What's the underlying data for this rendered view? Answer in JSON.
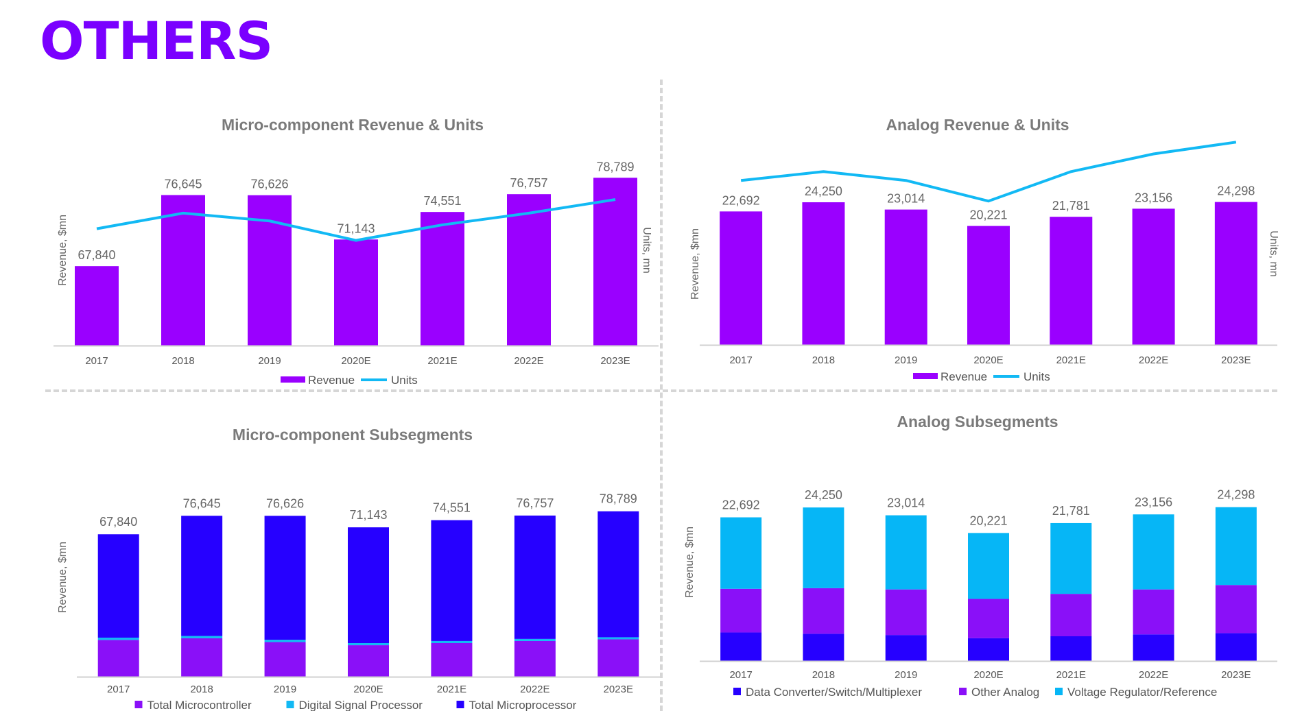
{
  "page": {
    "title": "OTHERS",
    "accent": "#7a00ff"
  },
  "chart_data": [
    {
      "id": "micro-rev-units",
      "type": "bar",
      "title": "Micro-component Revenue & Units",
      "xlabel": "",
      "ylabel": "Revenue, $mn",
      "y2label": "Units, mn",
      "categories": [
        "2017",
        "2018",
        "2019",
        "2020E",
        "2021E",
        "2022E",
        "2023E"
      ],
      "series": [
        {
          "name": "Revenue",
          "kind": "bar",
          "color": "#9a00ff",
          "values": [
            67840,
            76645,
            76626,
            71143,
            74551,
            76757,
            78789
          ]
        },
        {
          "name": "Units",
          "kind": "line",
          "axis": "secondary",
          "color": "#12b9f4",
          "values": [
            0.6,
            0.68,
            0.64,
            0.54,
            0.62,
            0.68,
            0.75
          ]
        }
      ],
      "data_labels": [
        "67,840",
        "76,645",
        "76,626",
        "71,143",
        "74,551",
        "76,757",
        "78,789"
      ],
      "ylim": [
        58000,
        80000
      ],
      "y2lim": [
        0,
        1
      ],
      "legend": "bottom",
      "grid": false
    },
    {
      "id": "analog-rev-units",
      "type": "bar",
      "title": "Analog Revenue & Units",
      "xlabel": "",
      "ylabel": "Revenue, $mn",
      "y2label": "Units, mn",
      "categories": [
        "2017",
        "2018",
        "2019",
        "2020E",
        "2021E",
        "2022E",
        "2023E"
      ],
      "series": [
        {
          "name": "Revenue",
          "kind": "bar",
          "color": "#9a00ff",
          "values": [
            22692,
            24250,
            23014,
            20221,
            21781,
            23156,
            24298
          ]
        },
        {
          "name": "Units",
          "kind": "line",
          "axis": "secondary",
          "color": "#12b9f4",
          "values": [
            0.76,
            0.79,
            0.76,
            0.69,
            0.79,
            0.85,
            0.89
          ]
        }
      ],
      "data_labels": [
        "22,692",
        "24,250",
        "23,014",
        "20,221",
        "21,781",
        "23,156",
        "24,298"
      ],
      "ylim": [
        0,
        26000
      ],
      "y2lim": [
        0,
        1
      ],
      "legend": "bottom",
      "grid": false
    },
    {
      "id": "micro-subsegments",
      "type": "bar",
      "stacked": true,
      "title": "Micro-component Subsegments",
      "xlabel": "",
      "ylabel": "Revenue, $mn",
      "categories": [
        "2017",
        "2018",
        "2019",
        "2020E",
        "2021E",
        "2022E",
        "2023E"
      ],
      "series": [
        {
          "name": "Total Microcontroller",
          "color": "#8a10f8",
          "values": [
            17500,
            18300,
            16500,
            15000,
            16000,
            17000,
            17800
          ]
        },
        {
          "name": "Digital Signal Processor",
          "color": "#12b9f4",
          "values": [
            1100,
            1100,
            1100,
            1000,
            1000,
            1000,
            1000
          ]
        },
        {
          "name": "Total Microprocessor",
          "color": "#2600ff",
          "values": [
            49240,
            57245,
            59026,
            55143,
            57551,
            58757,
            59989
          ]
        }
      ],
      "totals": [
        "67,840",
        "76,645",
        "76,626",
        "71,143",
        "74,551",
        "76,757",
        "78,789"
      ],
      "ylim": [
        0,
        80000
      ],
      "legend": "bottom",
      "grid": false
    },
    {
      "id": "analog-subsegments",
      "type": "bar",
      "stacked": true,
      "title": "Analog Subsegments",
      "xlabel": "",
      "ylabel": "Revenue, $mn",
      "categories": [
        "2017",
        "2018",
        "2019",
        "2020E",
        "2021E",
        "2022E",
        "2023E"
      ],
      "series": [
        {
          "name": "Data Converter/Switch/Multiplexer",
          "color": "#2600ff",
          "values": [
            4500,
            4300,
            4100,
            3600,
            3900,
            4200,
            4400
          ]
        },
        {
          "name": "Other Analog",
          "color": "#8a10f8",
          "values": [
            6900,
            7200,
            7200,
            6200,
            6700,
            7100,
            7600
          ]
        },
        {
          "name": "Voltage Regulator/Reference",
          "color": "#06b6f6",
          "values": [
            11292,
            12750,
            11714,
            10421,
            11181,
            11856,
            12298
          ]
        }
      ],
      "totals": [
        "22,692",
        "24,250",
        "23,014",
        "20,221",
        "21,781",
        "23,156",
        "24,298"
      ],
      "ylim": [
        0,
        26000
      ],
      "legend": "bottom",
      "grid": false
    }
  ]
}
